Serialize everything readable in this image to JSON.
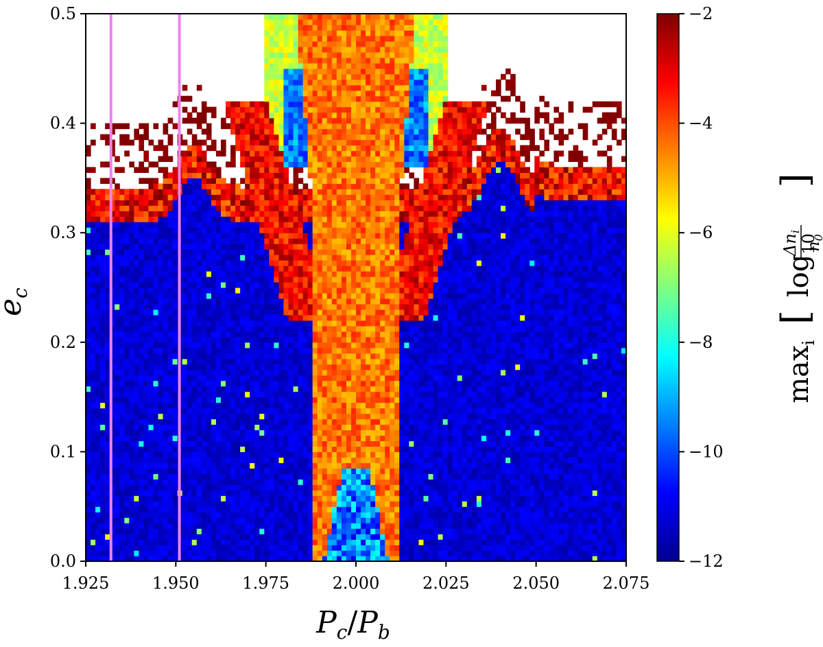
{
  "chart_data": {
    "type": "heatmap",
    "title": "",
    "xlabel": "P_c/P_b",
    "ylabel": "e_c",
    "xlim": [
      1.925,
      2.075
    ],
    "ylim": [
      0.0,
      0.5
    ],
    "x_ticks": [
      1.925,
      1.95,
      1.975,
      2.0,
      2.025,
      2.05,
      2.075
    ],
    "x_tick_labels": [
      "1.925",
      "1.950",
      "1.975",
      "2.000",
      "2.025",
      "2.050",
      "2.075"
    ],
    "y_ticks": [
      0.0,
      0.1,
      0.2,
      0.3,
      0.4,
      0.5
    ],
    "y_tick_labels": [
      "0.0",
      "0.1",
      "0.2",
      "0.3",
      "0.4",
      "0.5"
    ],
    "grid": {
      "nx": 112,
      "ny": 100,
      "missing": "white (unstable / not computed)"
    },
    "colorbar": {
      "label": "max_i [log10 Δn_i / n_0]",
      "label_parts": {
        "prefix": "max",
        "sub": "i",
        "log": "log",
        "log_sub": "10",
        "num": "Δn",
        "num_sub": "i",
        "den": "n",
        "den_sub": "0"
      },
      "colormap": "jet",
      "range": [
        -12,
        -2
      ],
      "ticks": [
        -2,
        -4,
        -6,
        -8,
        -10,
        -12
      ],
      "tick_labels": [
        "−2",
        "−4",
        "−6",
        "−8",
        "−10",
        "−12"
      ]
    },
    "features": {
      "resonance_center": 2.0,
      "stable_background_level": -11.5,
      "resonance_band_level": -4.5,
      "chaotic_boundary_level": -2.5,
      "stability_boundary_e": {
        "left_edge": 0.33,
        "right_edge": 0.33,
        "near_1_955": 0.37,
        "near_2_04": 0.39
      },
      "vertical_markers": [
        1.932,
        1.951
      ]
    },
    "vertical_lines": [
      {
        "x": 1.932,
        "color": "#ee82ee"
      },
      {
        "x": 1.951,
        "color": "#ee82ee"
      }
    ]
  }
}
